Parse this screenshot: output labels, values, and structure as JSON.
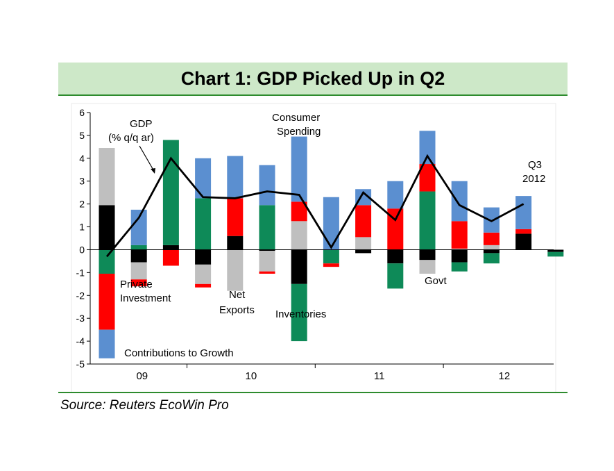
{
  "title": "Chart 1: GDP Picked Up in Q2",
  "source": "Source: Reuters EcoWin Pro",
  "chart_data": {
    "type": "bar",
    "stacked": true,
    "ylim": [
      -5,
      6
    ],
    "yticks": [
      "6",
      "5",
      "4",
      "3",
      "2",
      "1",
      "0",
      "-1",
      "-2",
      "-3",
      "-4",
      "-5"
    ],
    "year_labels": [
      "09",
      "10",
      "11",
      "12"
    ],
    "quarters": [
      "2009 Q1",
      "2009 Q2",
      "2009 Q3",
      "2009 Q4",
      "2010 Q1",
      "2010 Q2",
      "2010 Q3",
      "2010 Q4",
      "2011 Q1",
      "2011 Q2",
      "2011 Q3",
      "2011 Q4",
      "2012 Q1",
      "2012 Q2",
      "2012 Q3"
    ],
    "colors": {
      "consumer_spending": "#5b8fd0",
      "private_investment": "#ff0000",
      "net_exports": "#bfbfbf",
      "inventories": "#0e8a58",
      "govt": "#000000",
      "gdp_line": "#000000"
    },
    "series": [
      {
        "key": "govt",
        "values": [
          1.95,
          -0.55,
          0.2,
          -0.65,
          0.6,
          -0.05,
          -1.5,
          0.0,
          -0.15,
          -0.6,
          -0.45,
          -0.55,
          -0.15,
          0.7,
          -0.1
        ]
      },
      {
        "key": "net_exports",
        "values": [
          2.5,
          -0.75,
          0.0,
          -0.85,
          -1.8,
          -0.9,
          1.25,
          0.0,
          0.55,
          0.0,
          -0.6,
          0.05,
          0.2,
          0.0,
          0.0
        ]
      },
      {
        "key": "inventories",
        "values": [
          -1.05,
          0.2,
          4.6,
          2.25,
          0.0,
          1.95,
          -2.5,
          -0.6,
          0.0,
          -1.1,
          2.55,
          -0.4,
          -0.45,
          0.0,
          -0.2
        ]
      },
      {
        "key": "private_investment",
        "values": [
          -2.45,
          -0.3,
          -0.7,
          -0.15,
          1.65,
          -0.1,
          0.85,
          -0.15,
          1.4,
          1.8,
          1.2,
          1.2,
          0.55,
          0.2,
          0.0
        ]
      },
      {
        "key": "consumer_spending",
        "values": [
          -1.25,
          1.55,
          0.0,
          1.75,
          1.85,
          1.75,
          2.85,
          2.3,
          0.7,
          1.2,
          1.45,
          1.75,
          1.1,
          1.45,
          0.0
        ]
      }
    ],
    "gdp_line": {
      "name": "GDP",
      "values": [
        -0.3,
        1.4,
        4.0,
        2.3,
        2.25,
        2.55,
        2.4,
        0.1,
        2.5,
        1.3,
        4.1,
        1.95,
        1.25,
        2.0
      ]
    },
    "annotations": {
      "gdp": [
        "GDP",
        "(% q/q ar)"
      ],
      "consumer_spending": [
        "Consumer",
        "Spending"
      ],
      "private_investment": [
        "Private",
        "Investment"
      ],
      "net_exports": [
        "Net",
        "Exports"
      ],
      "inventories": [
        "Inventories"
      ],
      "govt": [
        "Govt"
      ],
      "q3_2012": [
        "Q3",
        "2012"
      ],
      "contributions": [
        "Contributions to Growth"
      ]
    }
  }
}
